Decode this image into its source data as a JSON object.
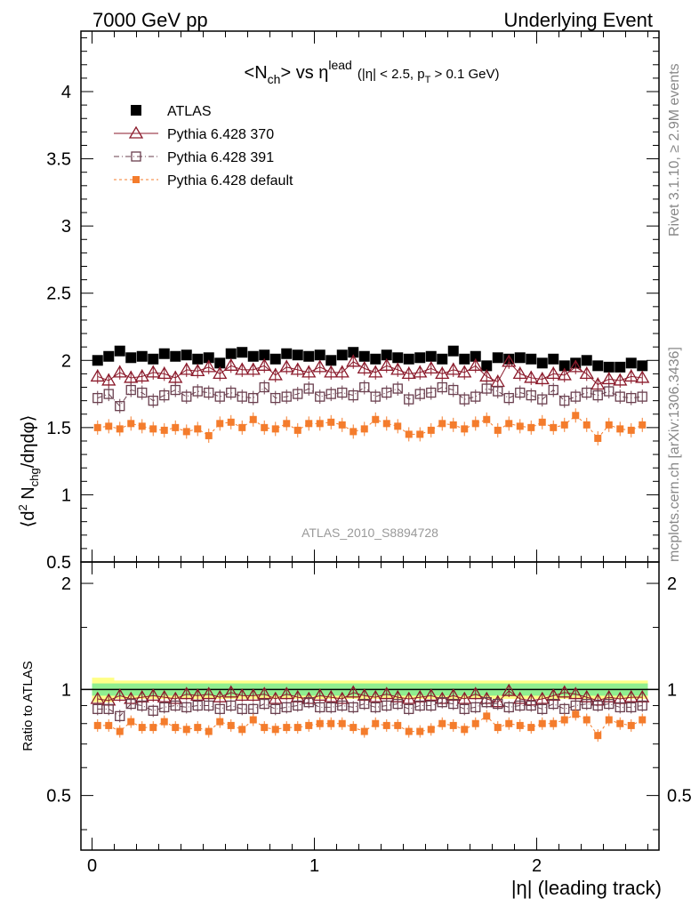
{
  "header": {
    "energy": "7000 GeV pp",
    "process": "Underlying Event"
  },
  "side_labels": {
    "rivet": "Rivet 3.1.10, ≥ 2.9M events",
    "mcplots": "mcplots.cern.ch [arXiv:1306.3436]"
  },
  "analysis_id": "ATLAS_2010_S8894728",
  "chart_data": {
    "type": "scatter",
    "title": {
      "main_a": "<N",
      "main_sub": "ch",
      "main_b": "> vs η",
      "main_sup": "lead",
      "cut_a": "(|η| < 2.5, p",
      "cut_sub": "T",
      "cut_b": " > 0.1 GeV)"
    },
    "xlabel": "|η| (leading track)",
    "ylabel": {
      "a": "⟨d",
      "sup1": "2",
      "b": " N",
      "sub1": "chg",
      "c": "/dηdφ⟩"
    },
    "ratio_ylabel": "Ratio to ATLAS",
    "xlim": [
      -0.05,
      2.55
    ],
    "ylim": [
      0.5,
      4.45
    ],
    "ratio_ylim": [
      0.35,
      2.3
    ],
    "x_ticks": [
      "0",
      "1",
      "2"
    ],
    "y_ticks": [
      "0.5",
      "1",
      "1.5",
      "2",
      "2.5",
      "3",
      "3.5",
      "4"
    ],
    "ratio_ticks": [
      "0.5",
      "1",
      "2"
    ],
    "x": [
      0.025,
      0.075,
      0.125,
      0.175,
      0.225,
      0.275,
      0.325,
      0.375,
      0.425,
      0.475,
      0.525,
      0.575,
      0.625,
      0.675,
      0.725,
      0.775,
      0.825,
      0.875,
      0.925,
      0.975,
      1.025,
      1.075,
      1.125,
      1.175,
      1.225,
      1.275,
      1.325,
      1.375,
      1.425,
      1.475,
      1.525,
      1.575,
      1.625,
      1.675,
      1.725,
      1.775,
      1.825,
      1.875,
      1.925,
      1.975,
      2.025,
      2.075,
      2.125,
      2.175,
      2.225,
      2.275,
      2.325,
      2.375,
      2.425,
      2.475
    ],
    "series": [
      {
        "name": "ATLAS",
        "color": "#000000",
        "marker": "filled-square",
        "values": [
          2.0,
          2.03,
          2.07,
          2.02,
          2.03,
          2.01,
          2.05,
          2.03,
          2.04,
          2.01,
          2.02,
          1.98,
          2.05,
          2.06,
          2.03,
          2.04,
          2.01,
          2.05,
          2.04,
          2.03,
          2.04,
          2.0,
          2.04,
          2.06,
          2.03,
          2.01,
          2.04,
          2.02,
          2.01,
          2.02,
          2.03,
          2.01,
          2.07,
          2.01,
          2.03,
          1.96,
          2.02,
          2.01,
          2.02,
          2.01,
          1.98,
          2.01,
          1.96,
          1.98,
          2.0,
          1.96,
          1.95,
          1.95,
          1.98,
          1.96
        ],
        "ratio": [
          1,
          1,
          1,
          1,
          1,
          1,
          1,
          1,
          1,
          1,
          1,
          1,
          1,
          1,
          1,
          1,
          1,
          1,
          1,
          1,
          1,
          1,
          1,
          1,
          1,
          1,
          1,
          1,
          1,
          1,
          1,
          1,
          1,
          1,
          1,
          1,
          1,
          1,
          1,
          1,
          1,
          1,
          1,
          1,
          1,
          1,
          1,
          1,
          1,
          1
        ]
      },
      {
        "name": "Pythia 6.428 370",
        "color": "#8b1a2b",
        "marker": "open-triangle",
        "values": [
          1.88,
          1.85,
          1.91,
          1.87,
          1.88,
          1.91,
          1.9,
          1.87,
          1.93,
          1.92,
          1.95,
          1.9,
          1.96,
          1.93,
          1.93,
          1.96,
          1.89,
          1.95,
          1.93,
          1.91,
          1.95,
          1.91,
          1.91,
          1.99,
          1.94,
          1.91,
          1.96,
          1.93,
          1.9,
          1.91,
          1.94,
          1.9,
          1.93,
          1.91,
          1.96,
          1.88,
          1.84,
          1.99,
          1.9,
          1.87,
          1.86,
          1.9,
          1.89,
          1.95,
          1.9,
          1.82,
          1.86,
          1.85,
          1.88,
          1.87
        ],
        "ratio": [
          0.94,
          0.93,
          0.96,
          0.94,
          0.95,
          0.96,
          0.95,
          0.94,
          0.97,
          0.96,
          0.97,
          0.95,
          0.98,
          0.96,
          0.96,
          0.97,
          0.94,
          0.97,
          0.95,
          0.94,
          0.96,
          0.95,
          0.94,
          0.98,
          0.96,
          0.95,
          0.97,
          0.95,
          0.94,
          0.95,
          0.96,
          0.94,
          0.96,
          0.94,
          0.97,
          0.94,
          0.92,
          0.99,
          0.94,
          0.93,
          0.94,
          0.96,
          0.98,
          0.97,
          0.95,
          0.93,
          0.95,
          0.94,
          0.95,
          0.95
        ]
      },
      {
        "name": "Pythia 6.428 391",
        "color": "#6a3f4e",
        "marker": "open-square",
        "values": [
          1.72,
          1.75,
          1.66,
          1.78,
          1.76,
          1.7,
          1.74,
          1.78,
          1.73,
          1.77,
          1.76,
          1.73,
          1.76,
          1.73,
          1.72,
          1.8,
          1.72,
          1.73,
          1.75,
          1.79,
          1.73,
          1.75,
          1.76,
          1.74,
          1.8,
          1.73,
          1.76,
          1.79,
          1.71,
          1.75,
          1.76,
          1.8,
          1.78,
          1.71,
          1.73,
          1.79,
          1.77,
          1.72,
          1.76,
          1.74,
          1.71,
          1.78,
          1.7,
          1.73,
          1.76,
          1.74,
          1.77,
          1.73,
          1.72,
          1.73
        ],
        "ratio": [
          0.88,
          0.88,
          0.84,
          0.91,
          0.9,
          0.87,
          0.89,
          0.9,
          0.89,
          0.9,
          0.9,
          0.88,
          0.9,
          0.88,
          0.88,
          0.91,
          0.88,
          0.89,
          0.9,
          0.92,
          0.89,
          0.89,
          0.9,
          0.89,
          0.91,
          0.89,
          0.9,
          0.91,
          0.88,
          0.9,
          0.9,
          0.92,
          0.91,
          0.88,
          0.89,
          0.92,
          0.91,
          0.89,
          0.9,
          0.9,
          0.88,
          0.91,
          0.88,
          0.9,
          0.91,
          0.9,
          0.91,
          0.89,
          0.89,
          0.9
        ]
      },
      {
        "name": "Pythia 6.428 default",
        "color": "#f47c2c",
        "marker": "filled-small-square",
        "values": [
          1.5,
          1.51,
          1.49,
          1.53,
          1.51,
          1.49,
          1.48,
          1.5,
          1.47,
          1.49,
          1.44,
          1.53,
          1.54,
          1.5,
          1.56,
          1.5,
          1.49,
          1.53,
          1.48,
          1.53,
          1.53,
          1.54,
          1.52,
          1.47,
          1.49,
          1.56,
          1.53,
          1.51,
          1.45,
          1.45,
          1.48,
          1.53,
          1.52,
          1.49,
          1.53,
          1.56,
          1.48,
          1.53,
          1.51,
          1.5,
          1.54,
          1.5,
          1.52,
          1.59,
          1.52,
          1.42,
          1.52,
          1.49,
          1.48,
          1.52
        ],
        "ratio": [
          0.79,
          0.79,
          0.76,
          0.81,
          0.78,
          0.78,
          0.81,
          0.78,
          0.77,
          0.78,
          0.76,
          0.81,
          0.79,
          0.77,
          0.82,
          0.78,
          0.77,
          0.78,
          0.78,
          0.79,
          0.8,
          0.8,
          0.8,
          0.78,
          0.76,
          0.8,
          0.79,
          0.79,
          0.76,
          0.76,
          0.77,
          0.8,
          0.79,
          0.77,
          0.8,
          0.84,
          0.78,
          0.8,
          0.79,
          0.78,
          0.8,
          0.8,
          0.82,
          0.85,
          0.82,
          0.74,
          0.82,
          0.8,
          0.79,
          0.82
        ]
      }
    ],
    "ratio_bands": {
      "stat_color": "#90ee90",
      "total_color": "#ffff88",
      "stat_halfwidth": 0.04,
      "total_halfwidth": [
        0.08,
        0.08,
        0.06,
        0.06,
        0.06,
        0.06,
        0.06,
        0.06,
        0.06,
        0.06,
        0.06,
        0.06,
        0.06,
        0.06,
        0.06,
        0.06,
        0.06,
        0.06,
        0.06,
        0.06,
        0.06,
        0.06,
        0.06,
        0.06,
        0.06,
        0.06,
        0.06,
        0.06,
        0.06,
        0.06,
        0.06,
        0.06,
        0.06,
        0.06,
        0.06,
        0.06,
        0.06,
        0.06,
        0.06,
        0.06,
        0.06,
        0.06,
        0.06,
        0.06,
        0.06,
        0.06,
        0.06,
        0.06,
        0.06,
        0.06
      ]
    },
    "grid": false,
    "legend_position": "top-left"
  }
}
